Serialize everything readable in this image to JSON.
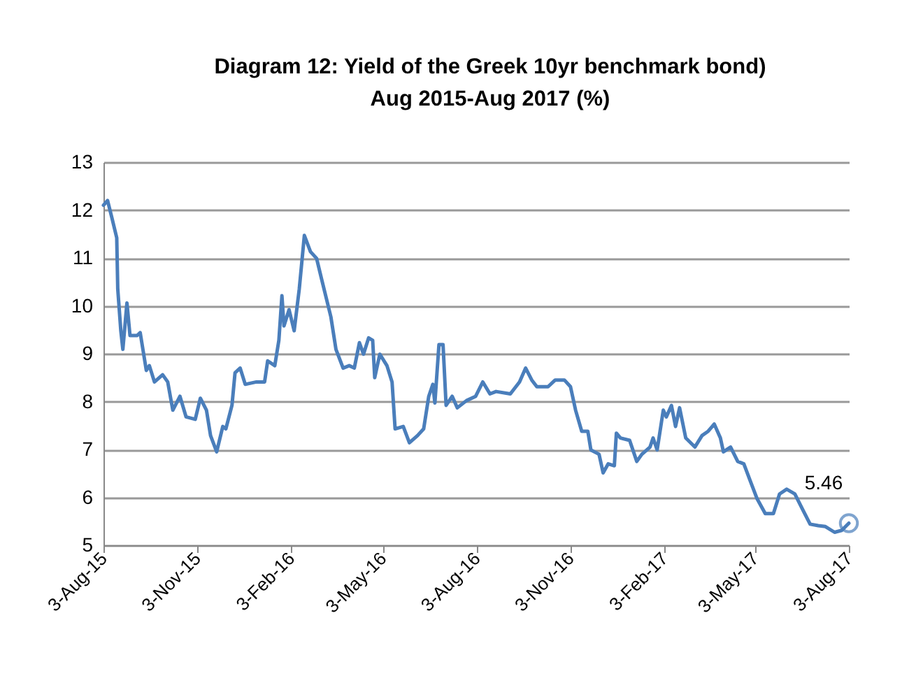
{
  "chart_data": {
    "type": "line",
    "title": "Diagram 12: Yield of the Greek 10yr benchmark bond)\nAug 2015-Aug 2017 (%)",
    "series": [
      {
        "color": "#4a7ebb",
        "x": [
          "2015-08-03",
          "2015-08-07",
          "2015-08-11",
          "2015-08-16",
          "2015-08-17",
          "2015-08-20",
          "2015-08-22",
          "2015-08-26",
          "2015-08-29",
          "2015-09-05",
          "2015-09-08",
          "2015-09-14",
          "2015-09-17",
          "2015-09-22",
          "2015-09-30",
          "2015-10-05",
          "2015-10-10",
          "2015-10-17",
          "2015-10-23",
          "2015-11-01",
          "2015-11-06",
          "2015-11-12",
          "2015-11-16",
          "2015-11-22",
          "2015-11-28",
          "2015-12-01",
          "2015-12-07",
          "2015-12-10",
          "2015-12-15",
          "2015-12-20",
          "2015-12-31",
          "2016-01-08",
          "2016-01-11",
          "2016-01-18",
          "2016-01-22",
          "2016-01-25",
          "2016-01-27",
          "2016-02-01",
          "2016-02-06",
          "2016-02-11",
          "2016-02-16",
          "2016-02-22",
          "2016-02-28",
          "2016-03-04",
          "2016-03-13",
          "2016-03-18",
          "2016-03-25",
          "2016-03-31",
          "2016-04-05",
          "2016-04-10",
          "2016-04-14",
          "2016-04-19",
          "2016-04-23",
          "2016-04-25",
          "2016-04-30",
          "2016-05-07",
          "2016-05-12",
          "2016-05-15",
          "2016-05-23",
          "2016-05-29",
          "2016-06-06",
          "2016-06-12",
          "2016-06-17",
          "2016-06-21",
          "2016-06-23",
          "2016-06-27",
          "2016-07-01",
          "2016-07-04",
          "2016-07-10",
          "2016-07-15",
          "2016-07-24",
          "2016-08-02",
          "2016-08-09",
          "2016-08-16",
          "2016-08-22",
          "2016-09-05",
          "2016-09-14",
          "2016-09-20",
          "2016-09-26",
          "2016-10-01",
          "2016-10-12",
          "2016-10-19",
          "2016-10-28",
          "2016-11-03",
          "2016-11-08",
          "2016-11-14",
          "2016-11-20",
          "2016-11-23",
          "2016-12-01",
          "2016-12-05",
          "2016-12-10",
          "2016-12-16",
          "2016-12-18",
          "2016-12-22",
          "2016-12-31",
          "2017-01-07",
          "2017-01-12",
          "2017-01-20",
          "2017-01-23",
          "2017-01-27",
          "2017-02-02",
          "2017-02-05",
          "2017-02-10",
          "2017-02-14",
          "2017-02-18",
          "2017-02-24",
          "2017-03-05",
          "2017-03-12",
          "2017-03-18",
          "2017-03-24",
          "2017-03-30",
          "2017-04-02",
          "2017-04-09",
          "2017-04-16",
          "2017-04-22",
          "2017-04-28",
          "2017-05-05",
          "2017-05-13",
          "2017-05-21",
          "2017-05-27",
          "2017-06-03",
          "2017-06-11",
          "2017-06-19",
          "2017-06-26",
          "2017-07-04",
          "2017-07-11",
          "2017-07-20",
          "2017-07-27",
          "2017-08-03"
        ],
        "values": [
          12.1,
          12.2,
          11.86,
          11.42,
          10.35,
          9.48,
          9.09,
          10.06,
          9.38,
          9.38,
          9.44,
          8.65,
          8.75,
          8.41,
          8.56,
          8.41,
          7.82,
          8.11,
          7.68,
          7.63,
          8.07,
          7.82,
          7.29,
          6.95,
          7.48,
          7.43,
          7.92,
          8.6,
          8.7,
          8.36,
          8.41,
          8.41,
          8.85,
          8.75,
          9.28,
          10.21,
          9.58,
          9.92,
          9.48,
          10.35,
          11.47,
          11.13,
          10.99,
          10.55,
          9.77,
          9.09,
          8.7,
          8.75,
          8.7,
          9.23,
          8.99,
          9.33,
          9.28,
          8.5,
          8.99,
          8.75,
          8.41,
          7.43,
          7.48,
          7.14,
          7.29,
          7.43,
          8.11,
          8.36,
          7.97,
          9.19,
          9.19,
          7.92,
          8.11,
          7.87,
          8.02,
          8.11,
          8.41,
          8.16,
          8.21,
          8.16,
          8.41,
          8.7,
          8.45,
          8.31,
          8.31,
          8.45,
          8.45,
          8.31,
          7.82,
          7.38,
          7.38,
          6.99,
          6.9,
          6.51,
          6.7,
          6.66,
          7.34,
          7.24,
          7.19,
          6.75,
          6.9,
          7.05,
          7.24,
          6.99,
          7.82,
          7.68,
          7.92,
          7.48,
          7.87,
          7.24,
          7.05,
          7.29,
          7.38,
          7.53,
          7.24,
          6.95,
          7.05,
          6.75,
          6.7,
          6.36,
          5.97,
          5.66,
          5.66,
          6.07,
          6.17,
          6.07,
          5.73,
          5.44,
          5.41,
          5.39,
          5.27,
          5.31,
          5.46
        ]
      }
    ],
    "annotations": [
      {
        "text": "5.46",
        "x": "2017-08-03",
        "y": 5.46
      }
    ],
    "xlim": [
      "2015-08-03",
      "2017-08-03"
    ],
    "xticks": [
      {
        "value": "2015-08-03",
        "label": "3-Aug-15"
      },
      {
        "value": "2015-11-03",
        "label": "3-Nov-15"
      },
      {
        "value": "2016-02-03",
        "label": "3-Feb-16"
      },
      {
        "value": "2016-05-03",
        "label": "3-May-16"
      },
      {
        "value": "2016-08-03",
        "label": "3-Aug-16"
      },
      {
        "value": "2016-11-03",
        "label": "3-Nov-16"
      },
      {
        "value": "2017-02-03",
        "label": "3-Feb-17"
      },
      {
        "value": "2017-05-03",
        "label": "3-May-17"
      },
      {
        "value": "2017-08-03",
        "label": "3-Aug-17"
      }
    ],
    "ylim": [
      5,
      13
    ],
    "yticks": [
      5,
      6,
      7,
      8,
      9,
      10,
      11,
      12,
      13
    ],
    "grid": "y",
    "line_style": "solid",
    "marker": "none"
  }
}
